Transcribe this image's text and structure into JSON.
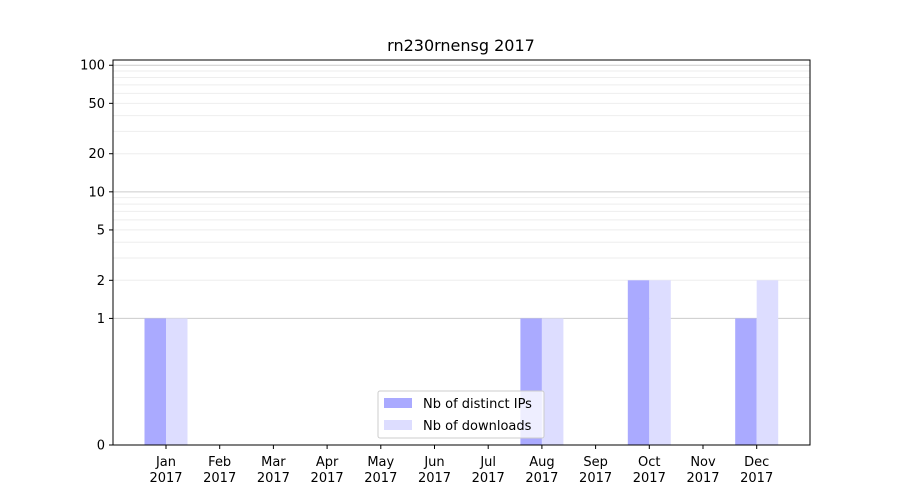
{
  "chart_data": {
    "type": "bar",
    "title": "rn230rnensg 2017",
    "categories": [
      "Jan\n2017",
      "Feb\n2017",
      "Mar\n2017",
      "Apr\n2017",
      "May\n2017",
      "Jun\n2017",
      "Jul\n2017",
      "Aug\n2017",
      "Sep\n2017",
      "Oct\n2017",
      "Nov\n2017",
      "Dec\n2017"
    ],
    "series": [
      {
        "name": "Nb of distinct IPs",
        "color": "#aaaaff",
        "values": [
          1,
          0,
          0,
          0,
          0,
          0,
          0,
          1,
          0,
          2,
          0,
          1
        ]
      },
      {
        "name": "Nb of downloads",
        "color": "#ddddff",
        "values": [
          1,
          0,
          0,
          0,
          0,
          0,
          0,
          1,
          0,
          2,
          0,
          2
        ]
      }
    ],
    "yscale": "symlog",
    "yticks": [
      0,
      1,
      2,
      5,
      10,
      20,
      50,
      100
    ],
    "ylim": [
      0,
      110
    ],
    "legend": "lower-center",
    "grid": true
  }
}
